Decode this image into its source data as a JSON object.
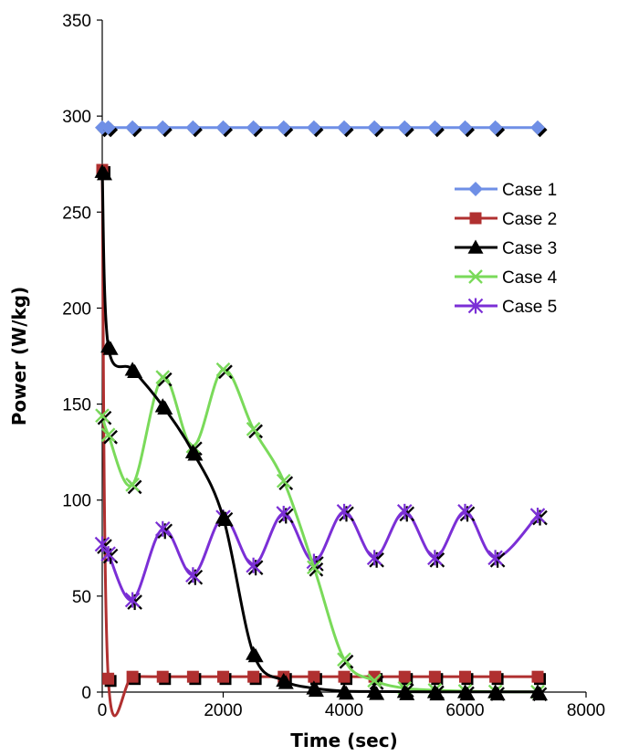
{
  "chart_data": {
    "type": "line",
    "title": "",
    "xlabel": "Time (sec)",
    "ylabel": "Power (W/kg)",
    "xlim": [
      0,
      8000
    ],
    "ylim": [
      0,
      350
    ],
    "xticks": [
      0,
      2000,
      4000,
      6000,
      8000
    ],
    "yticks": [
      0,
      50,
      100,
      150,
      200,
      250,
      300,
      350
    ],
    "xtick_labels": [
      "0",
      "2000",
      "4000",
      "6000",
      "8000"
    ],
    "ytick_labels": [
      "0",
      "50",
      "100",
      "150",
      "200",
      "250",
      "300",
      "350"
    ],
    "grid": false,
    "legend_position": "right",
    "series": [
      {
        "name": "Case 1",
        "color": "#6f8fe6",
        "marker": "diamond",
        "x": [
          0,
          100,
          500,
          1000,
          1500,
          2000,
          2500,
          3000,
          3500,
          4000,
          4500,
          5000,
          5500,
          6000,
          6500,
          7200
        ],
        "y": [
          294,
          294,
          294,
          294,
          294,
          294,
          294,
          294,
          294,
          294,
          294,
          294,
          294,
          294,
          294,
          294
        ]
      },
      {
        "name": "Case 2",
        "color": "#b03030",
        "marker": "square",
        "x": [
          0,
          100,
          500,
          1000,
          1500,
          2000,
          2500,
          3000,
          3500,
          4000,
          4500,
          5000,
          5500,
          6000,
          6500,
          7200
        ],
        "y": [
          272,
          7,
          8,
          8,
          8,
          8,
          8,
          8,
          8,
          8,
          8,
          8,
          8,
          8,
          8,
          8
        ]
      },
      {
        "name": "Case 3",
        "color": "#000000",
        "marker": "triangle",
        "x": [
          0,
          100,
          500,
          1000,
          1500,
          2000,
          2500,
          3000,
          3500,
          4000,
          4500,
          5000,
          5500,
          6000,
          6500,
          7200
        ],
        "y": [
          271,
          180,
          168,
          149,
          125,
          91,
          20,
          6,
          2,
          0.5,
          0.3,
          0.2,
          0.1,
          0.1,
          0.1,
          0.1
        ]
      },
      {
        "name": "Case 4",
        "color": "#7ada5a",
        "marker": "x",
        "x": [
          0,
          100,
          500,
          1000,
          1500,
          2000,
          2500,
          3000,
          3500,
          4000,
          4500,
          5000,
          5500,
          6000,
          6500,
          7200
        ],
        "y": [
          144,
          134,
          108,
          164,
          128,
          168,
          137,
          110,
          65,
          17,
          6,
          2,
          1,
          0.5,
          0.2,
          0.1
        ]
      },
      {
        "name": "Case 5",
        "color": "#7b2fd6",
        "marker": "asterisk",
        "x": [
          0,
          100,
          500,
          1000,
          1500,
          2000,
          2500,
          3000,
          3500,
          4000,
          4500,
          5000,
          5500,
          6000,
          6500,
          7200
        ],
        "y": [
          77,
          72,
          48,
          85,
          61,
          91,
          66,
          93,
          68,
          94,
          70,
          94,
          70,
          94,
          70,
          92
        ]
      }
    ]
  }
}
